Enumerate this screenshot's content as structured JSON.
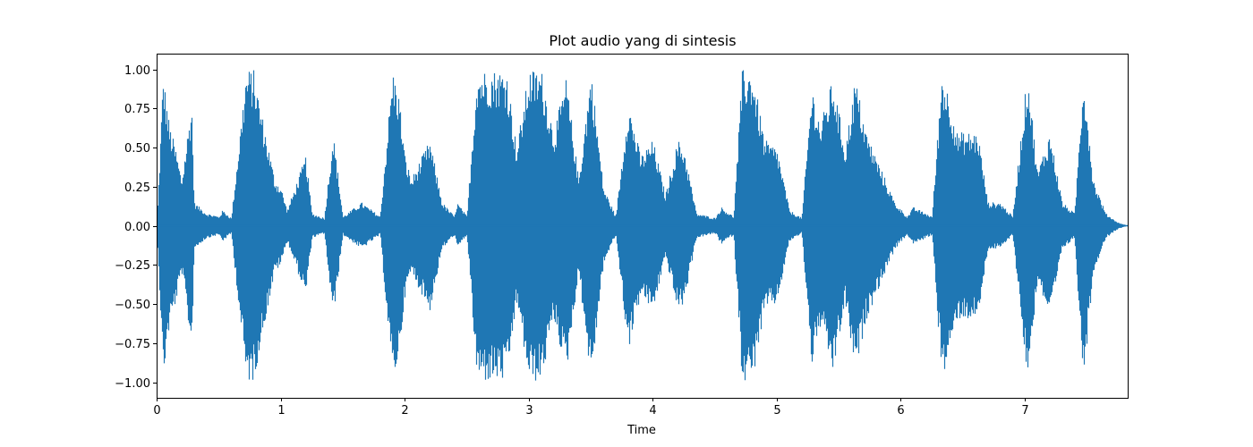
{
  "chart_data": {
    "type": "line",
    "title": "Plot audio yang di sintesis",
    "xlabel": "Time",
    "ylabel": "",
    "xlim": [
      0,
      7.83
    ],
    "ylim": [
      -1.1,
      1.1
    ],
    "x_ticks": [
      0,
      1,
      2,
      3,
      4,
      5,
      6,
      7
    ],
    "x_tick_labels": [
      "0",
      "1",
      "2",
      "3",
      "4",
      "5",
      "6",
      "7"
    ],
    "y_ticks": [
      -1.0,
      -0.75,
      -0.5,
      -0.25,
      0.0,
      0.25,
      0.5,
      0.75,
      1.0
    ],
    "y_tick_labels": [
      "−1.00",
      "−0.75",
      "−0.50",
      "−0.25",
      "0.00",
      "0.25",
      "0.50",
      "0.75",
      "1.00"
    ],
    "grid": false,
    "series_color": "#1f77b4",
    "series": [
      {
        "envelope": [
          {
            "t": 0.0,
            "amp": 0.0
          },
          {
            "t": 0.05,
            "amp": 0.98
          },
          {
            "t": 0.1,
            "amp": 0.65
          },
          {
            "t": 0.15,
            "amp": 0.5
          },
          {
            "t": 0.2,
            "amp": 0.3
          },
          {
            "t": 0.28,
            "amp": 0.8
          },
          {
            "t": 0.3,
            "amp": 0.15
          },
          {
            "t": 0.4,
            "amp": 0.08
          },
          {
            "t": 0.5,
            "amp": 0.06
          },
          {
            "t": 0.53,
            "amp": 0.1
          },
          {
            "t": 0.6,
            "amp": 0.05
          },
          {
            "t": 0.72,
            "amp": 1.0
          },
          {
            "t": 0.78,
            "amp": 1.0
          },
          {
            "t": 0.85,
            "amp": 0.7
          },
          {
            "t": 0.95,
            "amp": 0.3
          },
          {
            "t": 1.0,
            "amp": 0.25
          },
          {
            "t": 1.05,
            "amp": 0.1
          },
          {
            "t": 1.2,
            "amp": 0.45
          },
          {
            "t": 1.25,
            "amp": 0.08
          },
          {
            "t": 1.35,
            "amp": 0.05
          },
          {
            "t": 1.42,
            "amp": 0.6
          },
          {
            "t": 1.5,
            "amp": 0.06
          },
          {
            "t": 1.65,
            "amp": 0.15
          },
          {
            "t": 1.8,
            "amp": 0.06
          },
          {
            "t": 1.9,
            "amp": 1.0
          },
          {
            "t": 1.95,
            "amp": 0.85
          },
          {
            "t": 2.0,
            "amp": 0.45
          },
          {
            "t": 2.05,
            "amp": 0.3
          },
          {
            "t": 2.2,
            "amp": 0.55
          },
          {
            "t": 2.3,
            "amp": 0.15
          },
          {
            "t": 2.4,
            "amp": 0.06
          },
          {
            "t": 2.42,
            "amp": 0.15
          },
          {
            "t": 2.5,
            "amp": 0.06
          },
          {
            "t": 2.58,
            "amp": 1.0
          },
          {
            "t": 2.68,
            "amp": 1.0
          },
          {
            "t": 2.75,
            "amp": 1.0
          },
          {
            "t": 2.82,
            "amp": 1.0
          },
          {
            "t": 2.9,
            "amp": 0.5
          },
          {
            "t": 3.0,
            "amp": 1.0
          },
          {
            "t": 3.1,
            "amp": 1.0
          },
          {
            "t": 3.2,
            "amp": 0.6
          },
          {
            "t": 3.3,
            "amp": 0.95
          },
          {
            "t": 3.4,
            "amp": 0.3
          },
          {
            "t": 3.5,
            "amp": 1.0
          },
          {
            "t": 3.6,
            "amp": 0.25
          },
          {
            "t": 3.7,
            "amp": 0.06
          },
          {
            "t": 3.8,
            "amp": 0.8
          },
          {
            "t": 3.9,
            "amp": 0.45
          },
          {
            "t": 4.0,
            "amp": 0.55
          },
          {
            "t": 4.1,
            "amp": 0.2
          },
          {
            "t": 4.2,
            "amp": 0.55
          },
          {
            "t": 4.25,
            "amp": 0.5
          },
          {
            "t": 4.35,
            "amp": 0.08
          },
          {
            "t": 4.5,
            "amp": 0.05
          },
          {
            "t": 4.55,
            "amp": 0.12
          },
          {
            "t": 4.65,
            "amp": 0.06
          },
          {
            "t": 4.72,
            "amp": 1.0
          },
          {
            "t": 4.8,
            "amp": 1.0
          },
          {
            "t": 4.9,
            "amp": 0.55
          },
          {
            "t": 5.0,
            "amp": 0.5
          },
          {
            "t": 5.1,
            "amp": 0.1
          },
          {
            "t": 5.2,
            "amp": 0.05
          },
          {
            "t": 5.28,
            "amp": 0.9
          },
          {
            "t": 5.35,
            "amp": 0.65
          },
          {
            "t": 5.45,
            "amp": 0.95
          },
          {
            "t": 5.55,
            "amp": 0.5
          },
          {
            "t": 5.63,
            "amp": 0.95
          },
          {
            "t": 5.72,
            "amp": 0.6
          },
          {
            "t": 5.82,
            "amp": 0.4
          },
          {
            "t": 5.95,
            "amp": 0.15
          },
          {
            "t": 6.05,
            "amp": 0.06
          },
          {
            "t": 6.1,
            "amp": 0.12
          },
          {
            "t": 6.25,
            "amp": 0.06
          },
          {
            "t": 6.33,
            "amp": 1.0
          },
          {
            "t": 6.4,
            "amp": 0.8
          },
          {
            "t": 6.45,
            "amp": 0.6
          },
          {
            "t": 6.55,
            "amp": 0.6
          },
          {
            "t": 6.62,
            "amp": 0.6
          },
          {
            "t": 6.7,
            "amp": 0.15
          },
          {
            "t": 6.8,
            "amp": 0.15
          },
          {
            "t": 6.9,
            "amp": 0.06
          },
          {
            "t": 7.02,
            "amp": 1.0
          },
          {
            "t": 7.1,
            "amp": 0.35
          },
          {
            "t": 7.2,
            "amp": 0.6
          },
          {
            "t": 7.3,
            "amp": 0.15
          },
          {
            "t": 7.4,
            "amp": 0.08
          },
          {
            "t": 7.47,
            "amp": 1.0
          },
          {
            "t": 7.55,
            "amp": 0.3
          },
          {
            "t": 7.65,
            "amp": 0.08
          },
          {
            "t": 7.75,
            "amp": 0.02
          },
          {
            "t": 7.83,
            "amp": 0.0
          }
        ]
      }
    ]
  }
}
